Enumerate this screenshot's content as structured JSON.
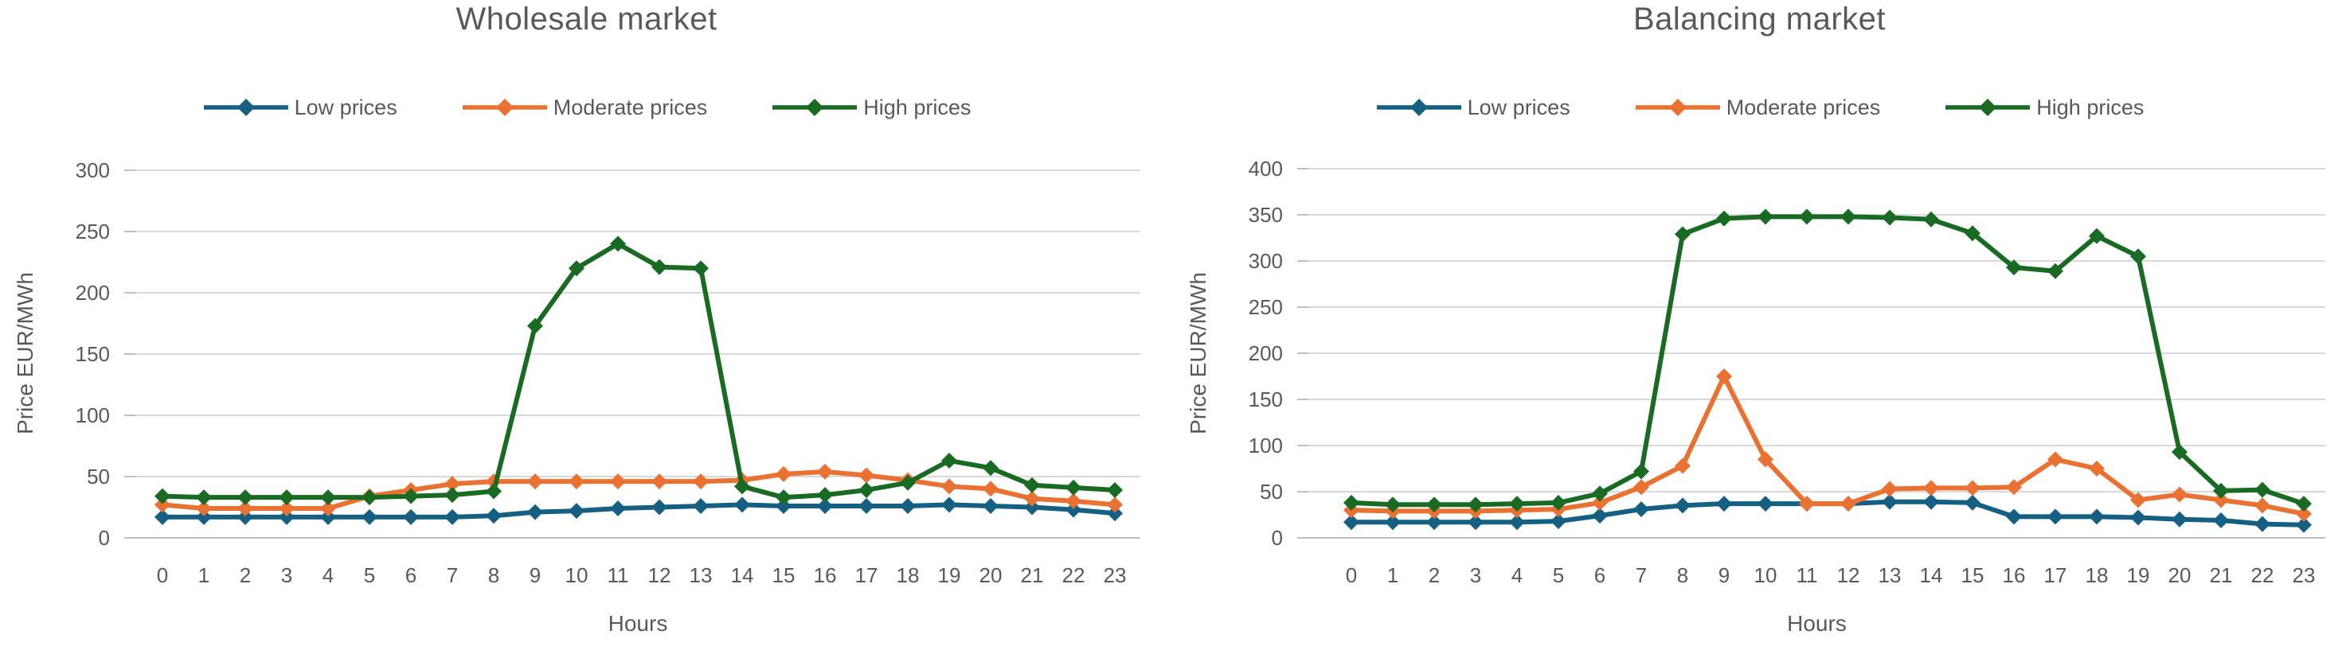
{
  "page": {
    "background": "#FFFFFF"
  },
  "colors": {
    "text": "#595959",
    "title": "#595959",
    "gridline": "#D9D9D9",
    "axis_line": "#BFBFBF"
  },
  "chart_data": [
    {
      "type": "line",
      "title": "Wholesale market",
      "xlabel": "Hours",
      "ylabel": "Price EUR/MWh",
      "ylim": [
        0,
        300
      ],
      "ystep": 50,
      "grid": true,
      "legend_position": "top",
      "marker": "diamond",
      "x": [
        0,
        1,
        2,
        3,
        4,
        5,
        6,
        7,
        8,
        9,
        10,
        11,
        12,
        13,
        14,
        15,
        16,
        17,
        18,
        19,
        20,
        21,
        22,
        23
      ],
      "series": [
        {
          "name": "Low prices",
          "color": "#156082",
          "values": [
            17,
            17,
            17,
            17,
            17,
            17,
            17,
            17,
            18,
            21,
            22,
            24,
            25,
            26,
            27,
            26,
            26,
            26,
            26,
            27,
            26,
            25,
            23,
            20
          ]
        },
        {
          "name": "Moderate prices",
          "color": "#E97132",
          "values": [
            27,
            24,
            24,
            24,
            24,
            34,
            39,
            44,
            46,
            46,
            46,
            46,
            46,
            46,
            47,
            52,
            54,
            51,
            47,
            42,
            40,
            32,
            30,
            27
          ]
        },
        {
          "name": "High prices",
          "color": "#196B24",
          "values": [
            34,
            33,
            33,
            33,
            33,
            33,
            34,
            35,
            38,
            173,
            220,
            240,
            221,
            220,
            42,
            33,
            35,
            39,
            45,
            63,
            57,
            43,
            41,
            39
          ]
        }
      ]
    },
    {
      "type": "line",
      "title": "Balancing market",
      "xlabel": "Hours",
      "ylabel": "Price EUR/MWh",
      "ylim": [
        0,
        400
      ],
      "ystep": 50,
      "grid": true,
      "legend_position": "top",
      "marker": "diamond",
      "x": [
        0,
        1,
        2,
        3,
        4,
        5,
        6,
        7,
        8,
        9,
        10,
        11,
        12,
        13,
        14,
        15,
        16,
        17,
        18,
        19,
        20,
        21,
        22,
        23
      ],
      "series": [
        {
          "name": "Low prices",
          "color": "#156082",
          "values": [
            17,
            17,
            17,
            17,
            17,
            18,
            24,
            31,
            35,
            37,
            37,
            37,
            37,
            39,
            39,
            38,
            23,
            23,
            23,
            22,
            20,
            19,
            15,
            14
          ]
        },
        {
          "name": "Moderate prices",
          "color": "#E97132",
          "values": [
            30,
            29,
            29,
            29,
            30,
            31,
            38,
            55,
            78,
            175,
            85,
            37,
            37,
            53,
            54,
            54,
            55,
            85,
            75,
            41,
            47,
            41,
            35,
            26
          ]
        },
        {
          "name": "High prices",
          "color": "#196B24",
          "values": [
            38,
            36,
            36,
            36,
            37,
            38,
            48,
            72,
            329,
            346,
            348,
            348,
            348,
            347,
            345,
            330,
            293,
            289,
            327,
            305,
            93,
            51,
            52,
            37
          ]
        }
      ]
    }
  ]
}
